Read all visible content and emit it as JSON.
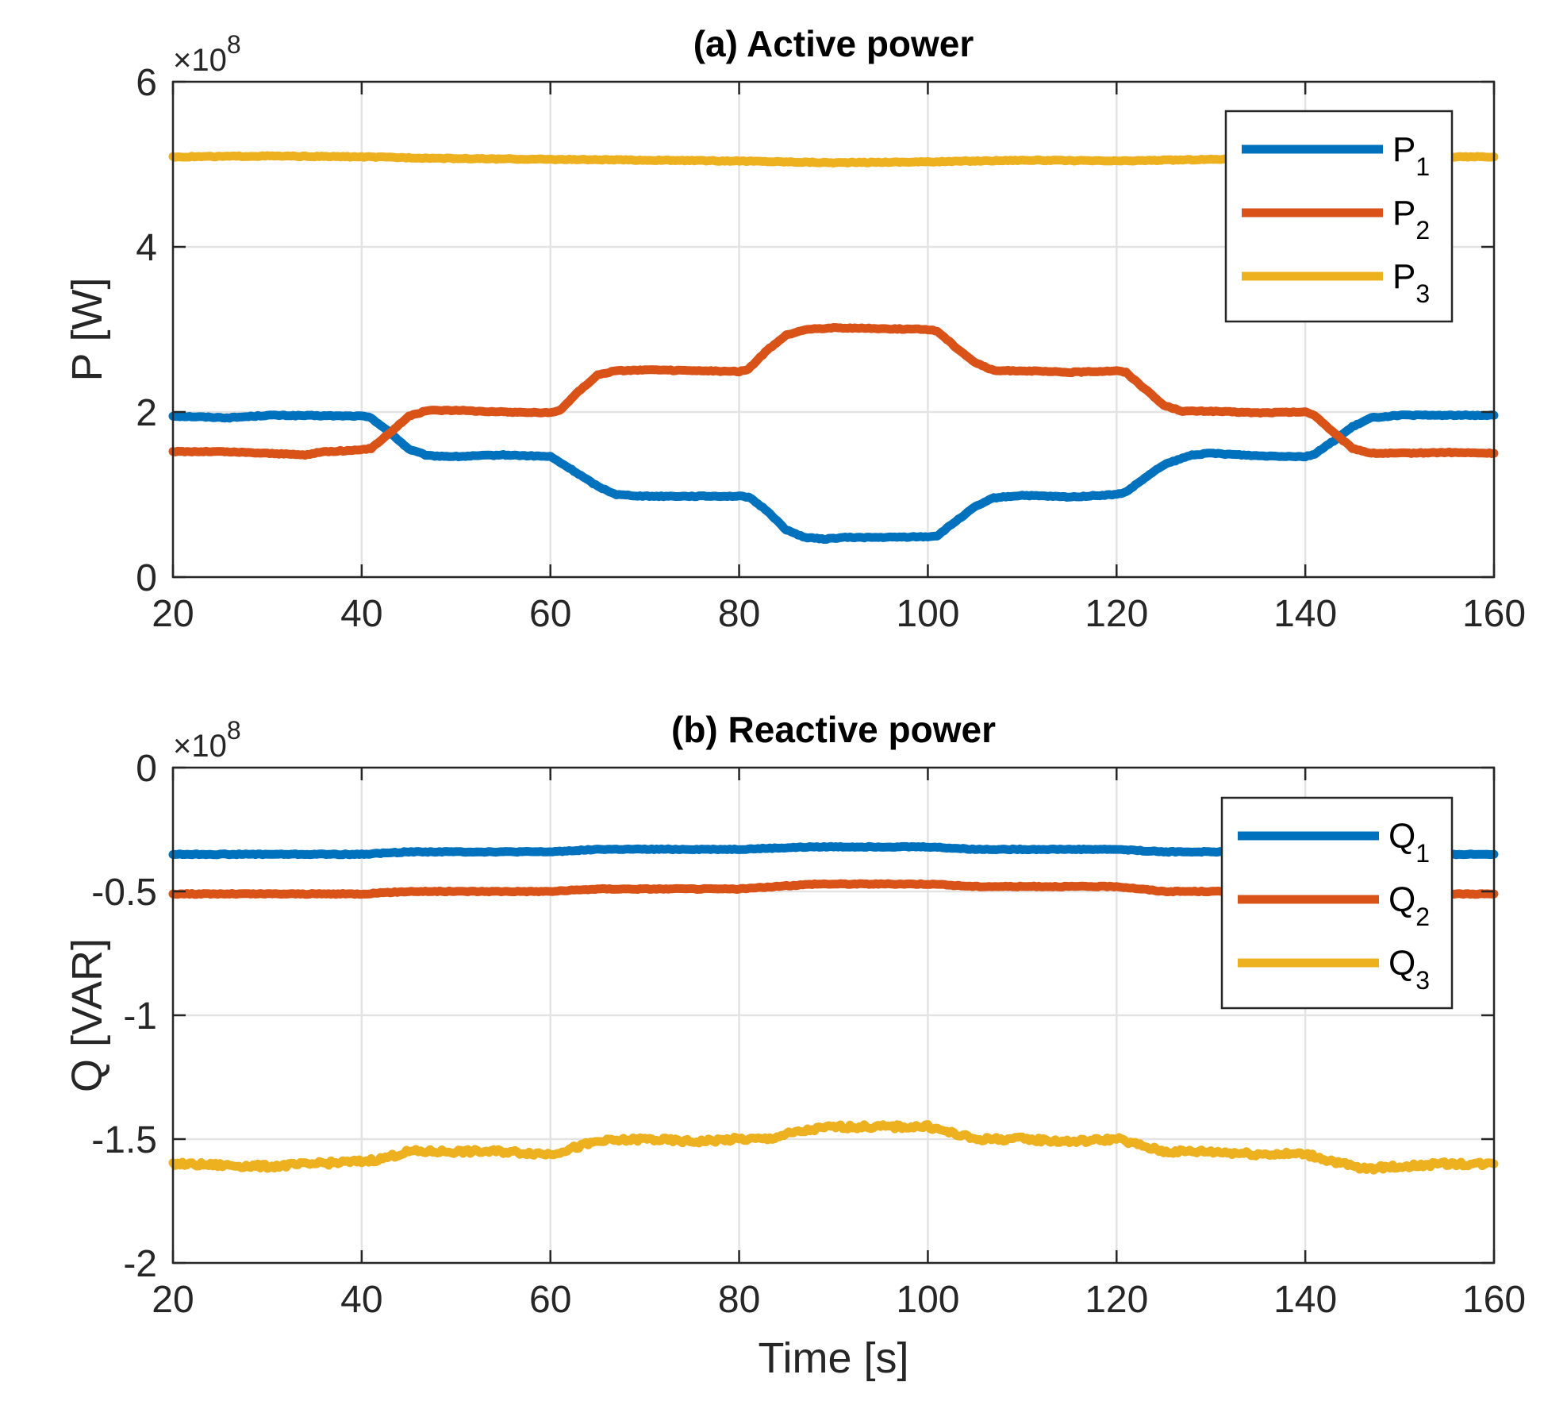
{
  "chart_data": [
    {
      "type": "line",
      "title": "(a) Active power",
      "xlabel": "",
      "ylabel": "P [W]",
      "xlim": [
        20,
        160
      ],
      "ylim": [
        0,
        6
      ],
      "xticks": [
        "20",
        "40",
        "60",
        "80",
        "100",
        "120",
        "140",
        "160"
      ],
      "yticks": [
        "0",
        "2",
        "4",
        "6"
      ],
      "yexponent": {
        "base": "×10",
        "power": "8"
      },
      "grid": true,
      "legend_position": "top-right",
      "series": [
        {
          "name": "P",
          "sub": "1",
          "color": "#0072BD",
          "points": [
            [
              20,
              1.95
            ],
            [
              26,
              1.93
            ],
            [
              30,
              1.96
            ],
            [
              40,
              1.95
            ],
            [
              41,
              1.93
            ],
            [
              43,
              1.75
            ],
            [
              45,
              1.55
            ],
            [
              47,
              1.47
            ],
            [
              50,
              1.46
            ],
            [
              55,
              1.48
            ],
            [
              60,
              1.46
            ],
            [
              62,
              1.32
            ],
            [
              65,
              1.1
            ],
            [
              67,
              1.0
            ],
            [
              70,
              0.98
            ],
            [
              80,
              0.98
            ],
            [
              81,
              0.97
            ],
            [
              83,
              0.8
            ],
            [
              85,
              0.57
            ],
            [
              87,
              0.48
            ],
            [
              89,
              0.46
            ],
            [
              91,
              0.48
            ],
            [
              95,
              0.48
            ],
            [
              100,
              0.49
            ],
            [
              101,
              0.5
            ],
            [
              103,
              0.68
            ],
            [
              105,
              0.85
            ],
            [
              107,
              0.96
            ],
            [
              110,
              0.99
            ],
            [
              115,
              0.97
            ],
            [
              120,
              1.0
            ],
            [
              121,
              1.03
            ],
            [
              123,
              1.2
            ],
            [
              125,
              1.36
            ],
            [
              128,
              1.48
            ],
            [
              130,
              1.5
            ],
            [
              135,
              1.47
            ],
            [
              140,
              1.46
            ],
            [
              141,
              1.49
            ],
            [
              143,
              1.65
            ],
            [
              145,
              1.82
            ],
            [
              147,
              1.93
            ],
            [
              150,
              1.96
            ],
            [
              155,
              1.96
            ],
            [
              160,
              1.96
            ]
          ]
        },
        {
          "name": "P",
          "sub": "2",
          "color": "#D95319",
          "points": [
            [
              20,
              1.52
            ],
            [
              25,
              1.52
            ],
            [
              30,
              1.5
            ],
            [
              34,
              1.48
            ],
            [
              36,
              1.52
            ],
            [
              40,
              1.54
            ],
            [
              41,
              1.56
            ],
            [
              43,
              1.75
            ],
            [
              45,
              1.95
            ],
            [
              47,
              2.02
            ],
            [
              50,
              2.02
            ],
            [
              55,
              2.0
            ],
            [
              60,
              1.99
            ],
            [
              61,
              2.02
            ],
            [
              63,
              2.25
            ],
            [
              65,
              2.45
            ],
            [
              67,
              2.5
            ],
            [
              70,
              2.51
            ],
            [
              80,
              2.49
            ],
            [
              81,
              2.52
            ],
            [
              83,
              2.75
            ],
            [
              85,
              2.93
            ],
            [
              87,
              3.0
            ],
            [
              90,
              3.02
            ],
            [
              95,
              3.01
            ],
            [
              100,
              3.0
            ],
            [
              101,
              2.98
            ],
            [
              103,
              2.78
            ],
            [
              105,
              2.6
            ],
            [
              107,
              2.5
            ],
            [
              110,
              2.5
            ],
            [
              115,
              2.48
            ],
            [
              120,
              2.5
            ],
            [
              121,
              2.48
            ],
            [
              123,
              2.28
            ],
            [
              125,
              2.08
            ],
            [
              127,
              2.01
            ],
            [
              130,
              2.01
            ],
            [
              135,
              1.99
            ],
            [
              140,
              2.0
            ],
            [
              141,
              1.96
            ],
            [
              143,
              1.75
            ],
            [
              145,
              1.56
            ],
            [
              147,
              1.5
            ],
            [
              150,
              1.5
            ],
            [
              155,
              1.51
            ],
            [
              160,
              1.5
            ]
          ]
        },
        {
          "name": "P",
          "sub": "3",
          "color": "#EDB120",
          "points": [
            [
              20,
              5.09
            ],
            [
              30,
              5.1
            ],
            [
              40,
              5.09
            ],
            [
              50,
              5.07
            ],
            [
              60,
              5.06
            ],
            [
              70,
              5.05
            ],
            [
              80,
              5.04
            ],
            [
              90,
              5.02
            ],
            [
              100,
              5.03
            ],
            [
              110,
              5.05
            ],
            [
              120,
              5.04
            ],
            [
              130,
              5.06
            ],
            [
              140,
              5.08
            ],
            [
              150,
              5.09
            ],
            [
              160,
              5.09
            ]
          ]
        }
      ]
    },
    {
      "type": "line",
      "title": "(b) Reactive power",
      "xlabel": "Time [s]",
      "ylabel": "Q [VAR]",
      "xlim": [
        20,
        160
      ],
      "ylim": [
        -2,
        0
      ],
      "xticks": [
        "20",
        "40",
        "60",
        "80",
        "100",
        "120",
        "140",
        "160"
      ],
      "yticks": [
        "0",
        "-0.5",
        "-1",
        "-1.5",
        "-2"
      ],
      "yexponent": {
        "base": "×10",
        "power": "8"
      },
      "grid": true,
      "legend_position": "top-right",
      "series": [
        {
          "name": "Q",
          "sub": "1",
          "color": "#0072BD",
          "points": [
            [
              20,
              -0.35
            ],
            [
              40,
              -0.35
            ],
            [
              45,
              -0.34
            ],
            [
              60,
              -0.34
            ],
            [
              65,
              -0.33
            ],
            [
              80,
              -0.33
            ],
            [
              88,
              -0.32
            ],
            [
              100,
              -0.32
            ],
            [
              105,
              -0.33
            ],
            [
              120,
              -0.33
            ],
            [
              125,
              -0.34
            ],
            [
              140,
              -0.34
            ],
            [
              145,
              -0.35
            ],
            [
              160,
              -0.35
            ]
          ]
        },
        {
          "name": "Q",
          "sub": "2",
          "color": "#D95319",
          "points": [
            [
              20,
              -0.51
            ],
            [
              40,
              -0.51
            ],
            [
              45,
              -0.5
            ],
            [
              60,
              -0.5
            ],
            [
              65,
              -0.49
            ],
            [
              80,
              -0.49
            ],
            [
              88,
              -0.47
            ],
            [
              100,
              -0.47
            ],
            [
              105,
              -0.48
            ],
            [
              120,
              -0.48
            ],
            [
              125,
              -0.5
            ],
            [
              140,
              -0.5
            ],
            [
              145,
              -0.51
            ],
            [
              160,
              -0.51
            ]
          ]
        },
        {
          "name": "Q",
          "sub": "3",
          "color": "#EDB120",
          "points": [
            [
              20,
              -1.6
            ],
            [
              30,
              -1.61
            ],
            [
              40,
              -1.59
            ],
            [
              42,
              -1.58
            ],
            [
              45,
              -1.55
            ],
            [
              50,
              -1.55
            ],
            [
              55,
              -1.55
            ],
            [
              60,
              -1.56
            ],
            [
              62,
              -1.54
            ],
            [
              65,
              -1.51
            ],
            [
              70,
              -1.5
            ],
            [
              75,
              -1.51
            ],
            [
              80,
              -1.5
            ],
            [
              83,
              -1.5
            ],
            [
              85,
              -1.48
            ],
            [
              88,
              -1.46
            ],
            [
              90,
              -1.45
            ],
            [
              95,
              -1.45
            ],
            [
              100,
              -1.45
            ],
            [
              102,
              -1.47
            ],
            [
              105,
              -1.5
            ],
            [
              110,
              -1.5
            ],
            [
              115,
              -1.51
            ],
            [
              120,
              -1.5
            ],
            [
              122,
              -1.52
            ],
            [
              125,
              -1.55
            ],
            [
              130,
              -1.55
            ],
            [
              135,
              -1.56
            ],
            [
              140,
              -1.56
            ],
            [
              143,
              -1.59
            ],
            [
              146,
              -1.62
            ],
            [
              150,
              -1.61
            ],
            [
              155,
              -1.6
            ],
            [
              160,
              -1.6
            ]
          ]
        }
      ]
    }
  ]
}
